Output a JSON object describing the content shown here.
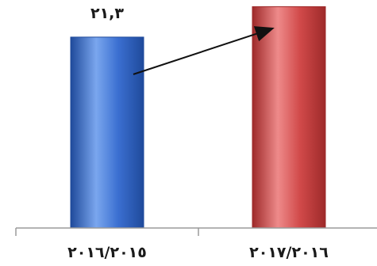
{
  "chart_data": {
    "type": "bar",
    "categories": [
      "٢٠١٦/٢٠١٥",
      "٢٠١٧/٢٠١٦"
    ],
    "values": [
      21.3,
      24.7
    ],
    "data_labels": [
      "٢١,٣",
      ""
    ],
    "colors": [
      "#3b6fd1",
      "#d14a4a"
    ],
    "colors_dark": [
      "#1f4a9b",
      "#9e2a2a"
    ],
    "colors_light": [
      "#7aa6ee",
      "#ee8a8a"
    ],
    "ylim": [
      0,
      25
    ],
    "grid": false,
    "legend": "none",
    "annotation": "arrow from first bar to second bar"
  }
}
